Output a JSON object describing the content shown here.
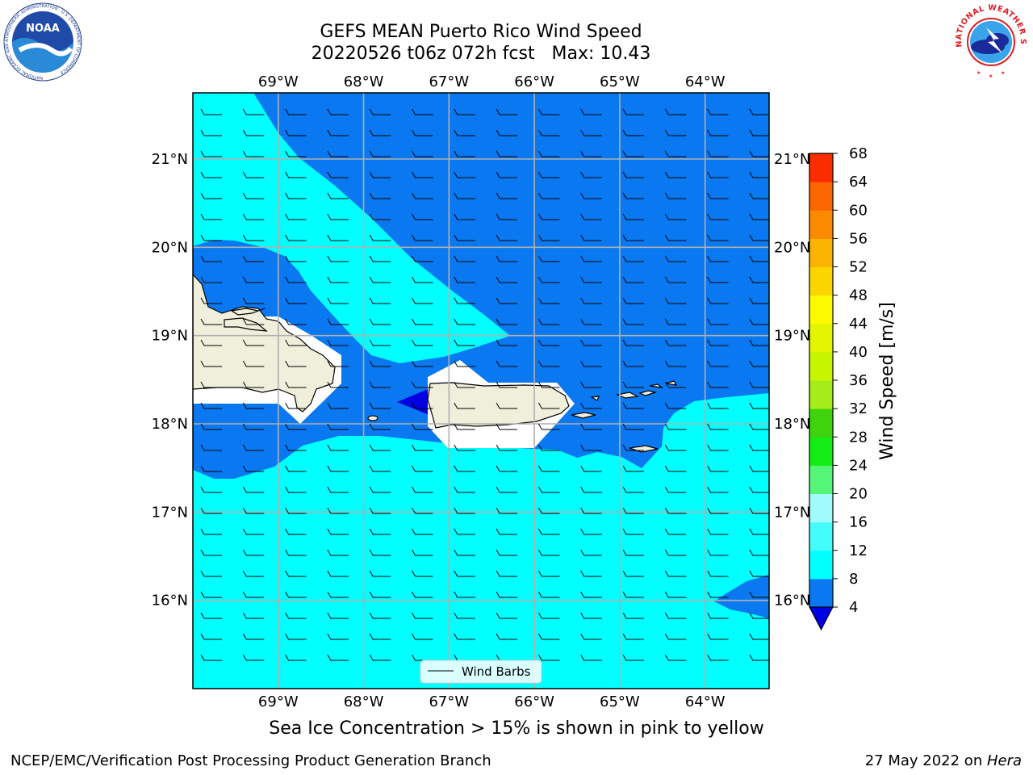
{
  "header": {
    "title_line1": "GEFS MEAN Puerto Rico Wind Speed",
    "title_line2": "20220526 t06z 072h fcst   Max: 10.43"
  },
  "footer": {
    "caption": "Sea Ice Concentration > 15% is shown in pink to yellow",
    "credit": "NCEP/EMC/Verification Post Processing Product Generation Branch",
    "date_text": "27 May 2022 on ",
    "system": "Hera"
  },
  "logos": {
    "noaa_text": "NOAA",
    "noaa_ring": "NATIONAL OCEANIC AND ATMOSPHERIC ADMINISTRATION · U.S. DEPARTMENT OF COMMERCE",
    "nws_ring": "NATIONAL WEATHER SERVICE"
  },
  "chart_data": {
    "type": "map",
    "lon_range": [
      -70.0,
      -63.25
    ],
    "lat_range": [
      15.0,
      21.75
    ],
    "lon_ticks": [
      {
        "value": -69,
        "label": "69°W"
      },
      {
        "value": -68,
        "label": "68°W"
      },
      {
        "value": -67,
        "label": "67°W"
      },
      {
        "value": -66,
        "label": "66°W"
      },
      {
        "value": -65,
        "label": "65°W"
      },
      {
        "value": -64,
        "label": "64°W"
      }
    ],
    "lat_ticks": [
      {
        "value": 21,
        "label": "21°N"
      },
      {
        "value": 20,
        "label": "20°N"
      },
      {
        "value": 19,
        "label": "19°N"
      },
      {
        "value": 18,
        "label": "18°N"
      },
      {
        "value": 17,
        "label": "17°N"
      },
      {
        "value": 16,
        "label": "16°N"
      }
    ],
    "grid": true,
    "legend": {
      "label": "Wind Barbs",
      "position": "bottom-center"
    },
    "colorbar": {
      "label": "Wind Speed [m/s]",
      "levels": [
        4,
        8,
        12,
        16,
        20,
        24,
        28,
        32,
        36,
        40,
        44,
        48,
        52,
        56,
        60,
        64,
        68
      ],
      "colors": [
        "#0a78f0",
        "#00ffff",
        "#44fcfc",
        "#a0fcfc",
        "#55f57a",
        "#13ed13",
        "#3dd40d",
        "#a6ec1b",
        "#c6f500",
        "#e3f500",
        "#fbfa00",
        "#fcd400",
        "#fcb200",
        "#fc8a00",
        "#fc6600",
        "#fc2b00"
      ],
      "under_color": "#0000e0",
      "extend": "min"
    },
    "fill_colors": {
      "band_4_8": "#0a78f0",
      "band_8_12": "#00ffff",
      "below_4": "#0000e0",
      "land": "#efefdc"
    },
    "max_value": 10.43,
    "wind_direction": "easterly"
  }
}
